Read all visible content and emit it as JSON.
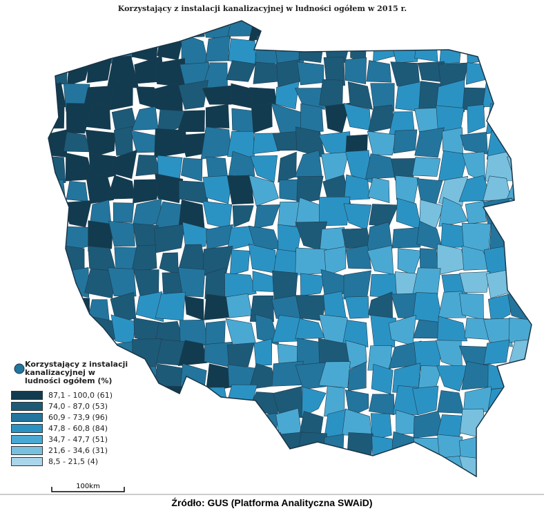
{
  "title": "Korzystający z instalacji kanalizacyjnej w ludności ogółem w 2015 r.",
  "legend": {
    "title": "Korzystający z instalacji kanalizacyjnej w ludności ogółem (%)",
    "items": [
      {
        "label": "87,1 - 100,0 (61)",
        "color": "#123b4f"
      },
      {
        "label": "74,0 - 87,0 (53)",
        "color": "#1d5a78"
      },
      {
        "label": "60,9 - 73,9 (96)",
        "color": "#23759d"
      },
      {
        "label": "47,8 - 60,8 (84)",
        "color": "#2b93c4"
      },
      {
        "label": "34,7 - 47,7 (51)",
        "color": "#4aa9d3"
      },
      {
        "label": "21,6 - 34,6 (31)",
        "color": "#78c0de"
      },
      {
        "label": "8,5 - 21,5 (4)",
        "color": "#a9d6ea"
      }
    ]
  },
  "scale_bar": "100km",
  "source": "Źródło: GUS (Platforma Analityczna SWAiD)"
}
